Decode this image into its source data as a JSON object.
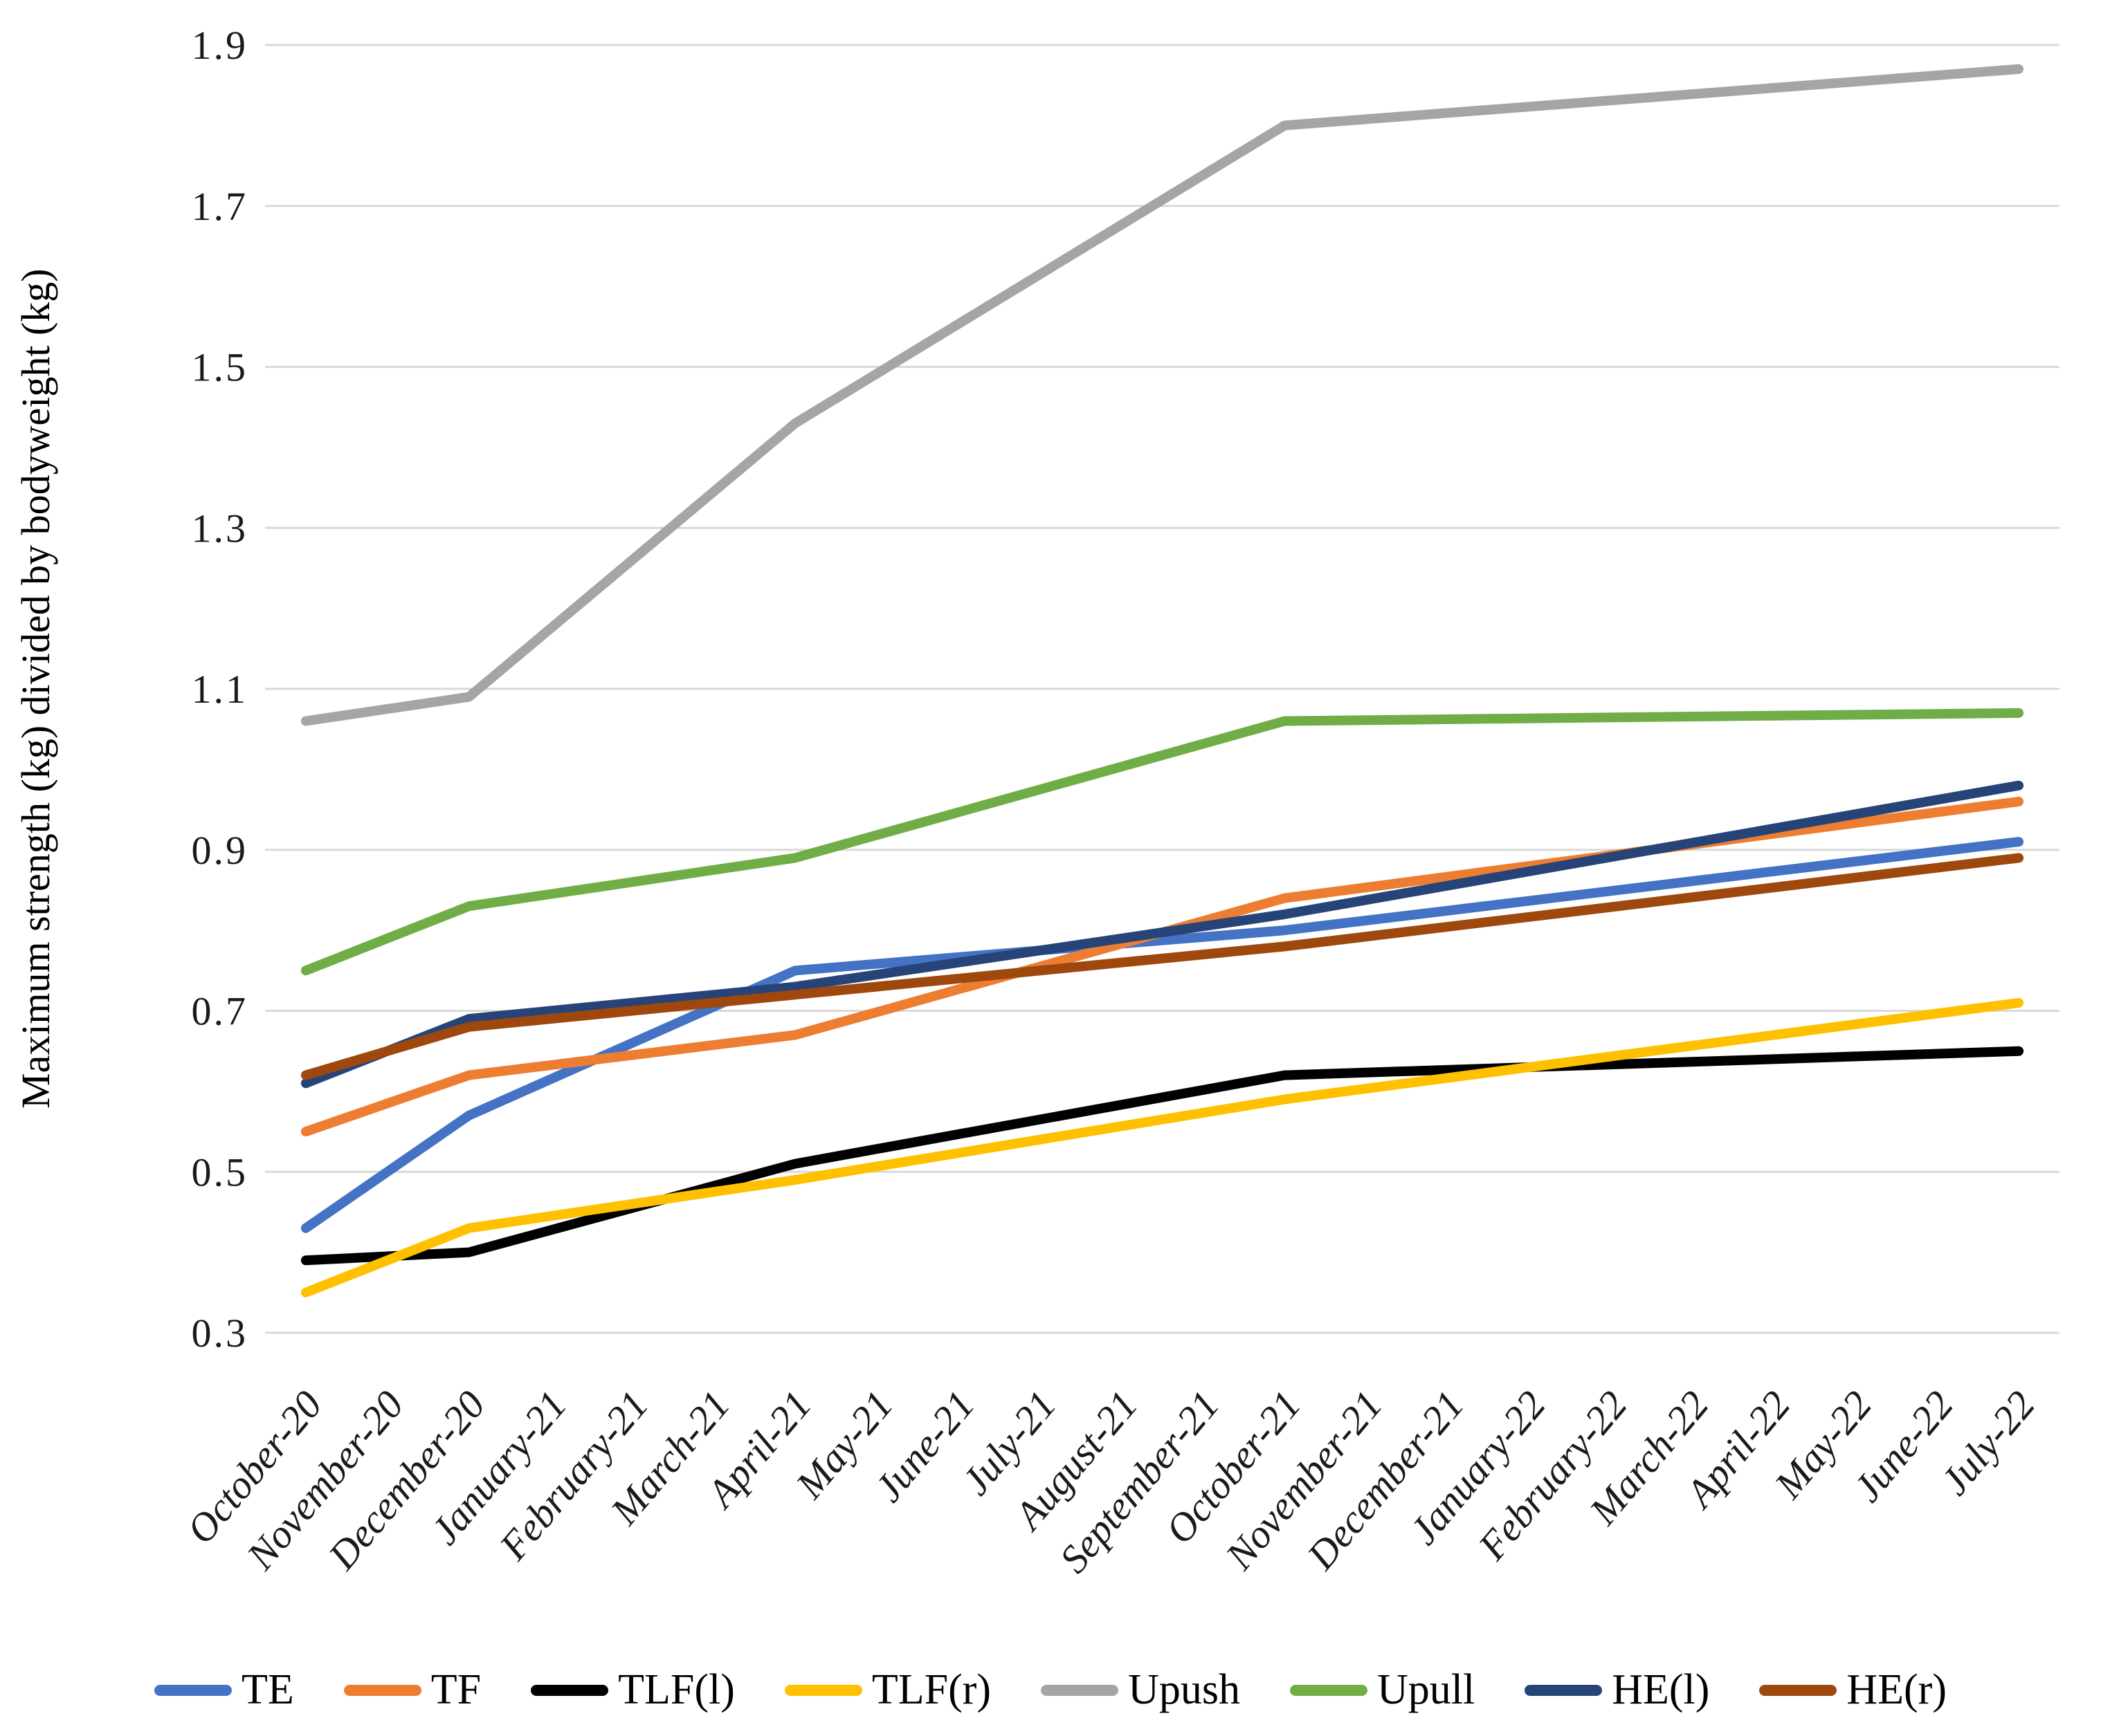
{
  "chart_data": {
    "type": "line",
    "title": "",
    "xlabel": "",
    "ylabel": "Maximum strength (kg) divided by bodyweight (kg)",
    "ylim": [
      0.3,
      1.9
    ],
    "y_ticks": [
      1.9,
      1.7,
      1.5,
      1.3,
      1.1,
      0.9,
      0.7,
      0.5,
      0.3
    ],
    "grid": true,
    "legend_position": "bottom",
    "gridline_color": "#d9d9d9",
    "text_color": "#1a1a1a",
    "categories": [
      "October-20",
      "November-20",
      "December-20",
      "January-21",
      "February-21",
      "March-21",
      "April-21",
      "May-21",
      "June-21",
      "July-21",
      "August-21",
      "September-21",
      "October-21",
      "November-21",
      "December-21",
      "January-22",
      "February-22",
      "March-22",
      "April-22",
      "May-22",
      "June-22",
      "July-22"
    ],
    "measured_months": [
      "October-20",
      "December-20",
      "April-21",
      "October-21",
      "July-22"
    ],
    "series": [
      {
        "name": "TE",
        "color": "#4472C4",
        "points": [
          {
            "x": "October-20",
            "y": 0.43
          },
          {
            "x": "December-20",
            "y": 0.57
          },
          {
            "x": "April-21",
            "y": 0.75
          },
          {
            "x": "October-21",
            "y": 0.8
          },
          {
            "x": "July-22",
            "y": 0.91
          }
        ]
      },
      {
        "name": "TF",
        "color": "#ED7D31",
        "points": [
          {
            "x": "October-20",
            "y": 0.55
          },
          {
            "x": "December-20",
            "y": 0.62
          },
          {
            "x": "April-21",
            "y": 0.67
          },
          {
            "x": "October-21",
            "y": 0.84
          },
          {
            "x": "July-22",
            "y": 0.96
          }
        ]
      },
      {
        "name": "TLF(l)",
        "color": "#000000",
        "points": [
          {
            "x": "October-20",
            "y": 0.39
          },
          {
            "x": "December-20",
            "y": 0.4
          },
          {
            "x": "April-21",
            "y": 0.51
          },
          {
            "x": "October-21",
            "y": 0.62
          },
          {
            "x": "July-22",
            "y": 0.65
          }
        ]
      },
      {
        "name": "TLF(r)",
        "color": "#FFC000",
        "points": [
          {
            "x": "October-20",
            "y": 0.35
          },
          {
            "x": "December-20",
            "y": 0.43
          },
          {
            "x": "April-21",
            "y": 0.49
          },
          {
            "x": "October-21",
            "y": 0.59
          },
          {
            "x": "July-22",
            "y": 0.71
          }
        ]
      },
      {
        "name": "Upush",
        "color": "#A5A5A5",
        "points": [
          {
            "x": "October-20",
            "y": 1.06
          },
          {
            "x": "December-20",
            "y": 1.09
          },
          {
            "x": "April-21",
            "y": 1.43
          },
          {
            "x": "October-21",
            "y": 1.8
          },
          {
            "x": "July-22",
            "y": 1.87
          }
        ]
      },
      {
        "name": "Upull",
        "color": "#70AD47",
        "points": [
          {
            "x": "October-20",
            "y": 0.75
          },
          {
            "x": "December-20",
            "y": 0.83
          },
          {
            "x": "April-21",
            "y": 0.89
          },
          {
            "x": "October-21",
            "y": 1.06
          },
          {
            "x": "July-22",
            "y": 1.07
          }
        ]
      },
      {
        "name": "HE(l)",
        "color": "#264478",
        "points": [
          {
            "x": "October-20",
            "y": 0.61
          },
          {
            "x": "December-20",
            "y": 0.69
          },
          {
            "x": "April-21",
            "y": 0.73
          },
          {
            "x": "October-21",
            "y": 0.82
          },
          {
            "x": "July-22",
            "y": 0.98
          }
        ]
      },
      {
        "name": "HE(r)",
        "color": "#9E480E",
        "points": [
          {
            "x": "October-20",
            "y": 0.62
          },
          {
            "x": "December-20",
            "y": 0.68
          },
          {
            "x": "April-21",
            "y": 0.72
          },
          {
            "x": "October-21",
            "y": 0.78
          },
          {
            "x": "July-22",
            "y": 0.89
          }
        ]
      }
    ]
  }
}
